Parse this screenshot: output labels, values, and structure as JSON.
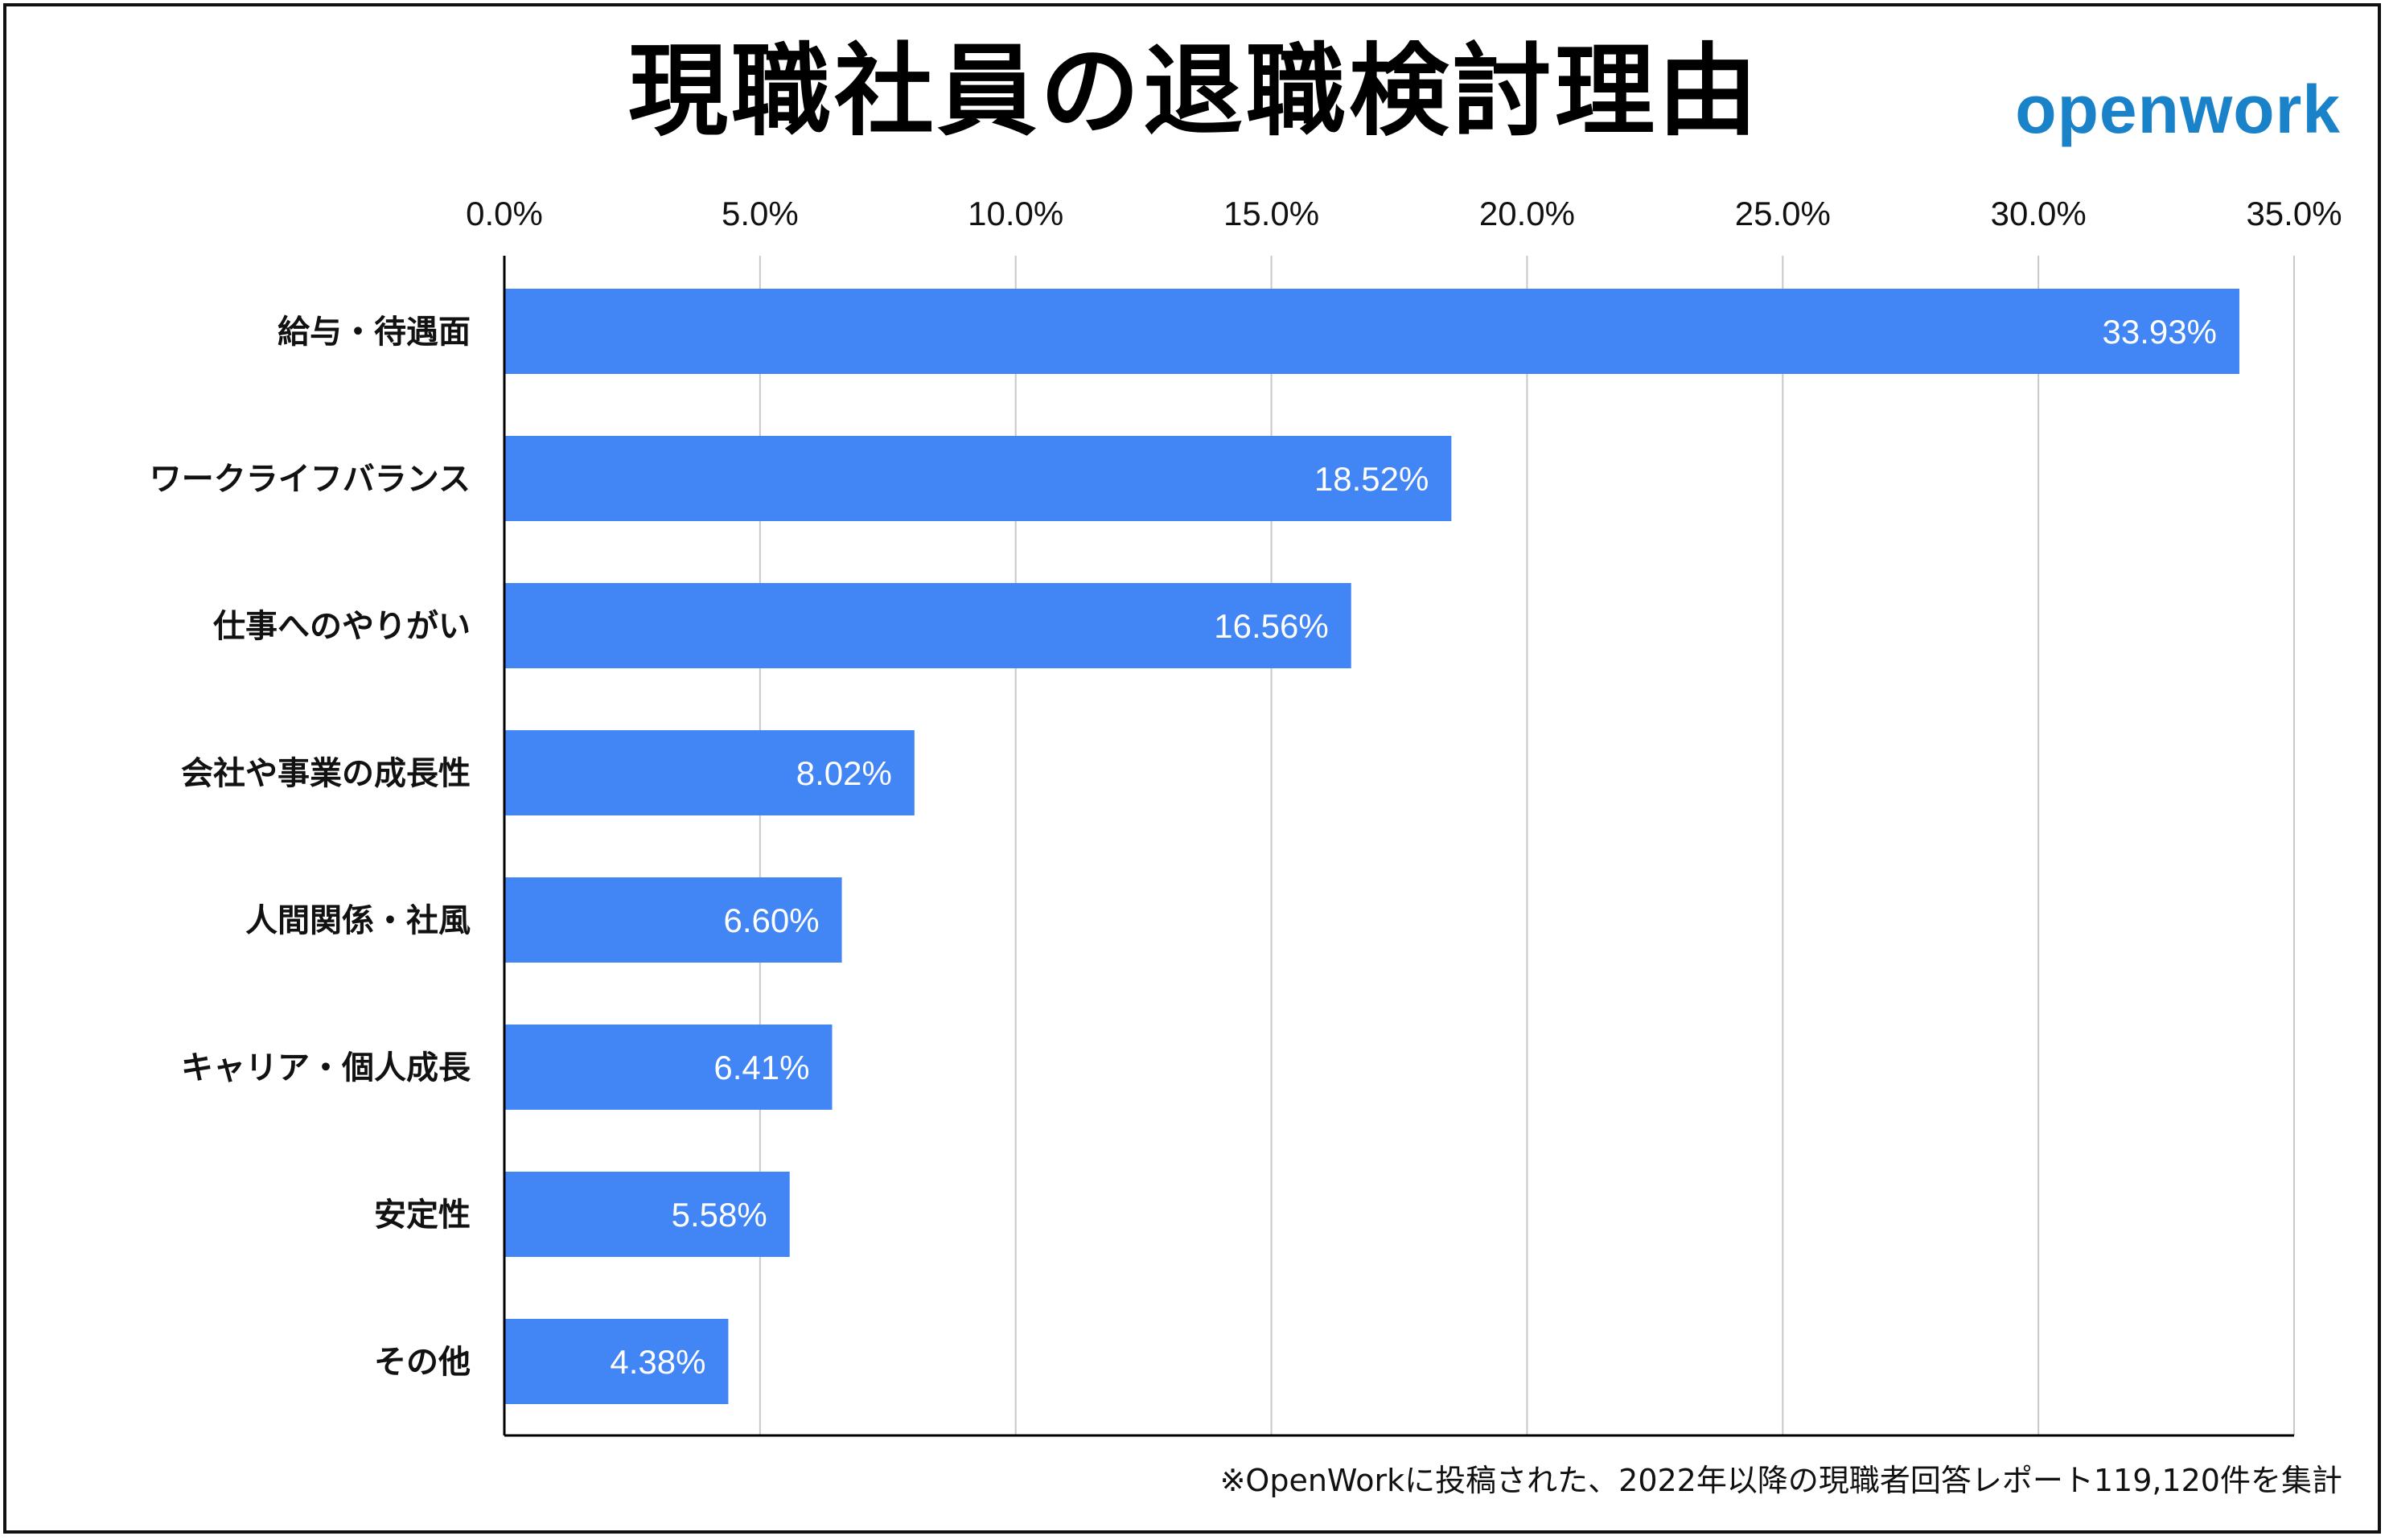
{
  "title": "現職社員の退職検討理由",
  "logo": "openwork",
  "colors": {
    "bar": "#4285F4",
    "logo": "#1A82C8",
    "grid": "#C8C8C8",
    "axis": "#000000"
  },
  "footnote": "※OpenWorkに投稿された、2022年以降の現職者回答レポート119,120件を集計",
  "chart_data": {
    "type": "bar",
    "orientation": "horizontal",
    "categories": [
      "給与・待遇面",
      "ワークライフバランス",
      "仕事へのやりがい",
      "会社や事業の成長性",
      "人間関係・社風",
      "キャリア・個人成長",
      "安定性",
      "その他"
    ],
    "values": [
      33.93,
      18.52,
      16.56,
      8.02,
      6.6,
      6.41,
      5.58,
      4.38
    ],
    "data_labels": [
      "33.93%",
      "18.52%",
      "16.56%",
      "8.02%",
      "6.60%",
      "6.41%",
      "5.58%",
      "4.38%"
    ],
    "x_ticks": [
      0,
      5,
      10,
      15,
      20,
      25,
      30,
      35
    ],
    "x_tick_labels": [
      "0.0%",
      "5.0%",
      "10.0%",
      "15.0%",
      "20.0%",
      "25.0%",
      "30.0%",
      "35.0%"
    ],
    "xlim": [
      0,
      35
    ],
    "x_axis_position": "top",
    "grid": true,
    "legend": "none"
  }
}
